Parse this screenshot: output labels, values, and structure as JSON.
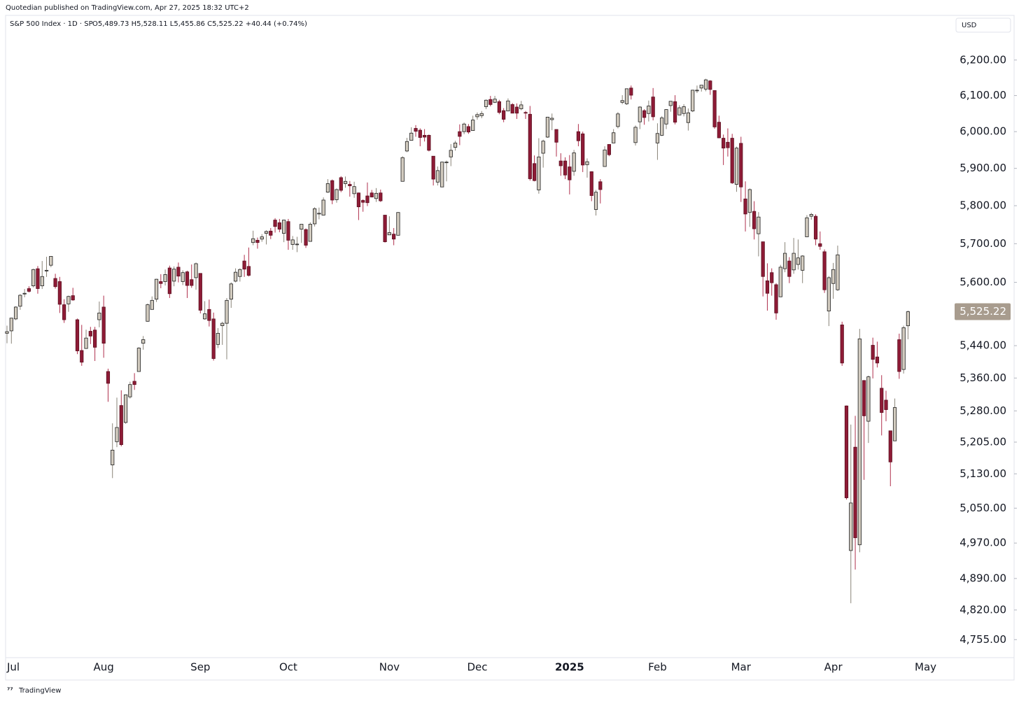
{
  "chart_data": {
    "type": "candlestick",
    "publisher": "Quotedian published on TradingView.com, Apr 27, 2025 18:32 UTC+2",
    "title": "S&P 500 Index · 1D · SP",
    "subtitle": "O5,489.73  H5,528.11  L5,455.86  C5,525.22  +40.44 (+0.74%)",
    "currency": "USD",
    "branding": "TradingView",
    "log_scale": true,
    "up_color": "#d3ccc0",
    "down_color": "#8e1b36",
    "ylim": [
      4716,
      6328
    ],
    "yticks": [
      {
        "value": 6200,
        "label": "6,200.00"
      },
      {
        "value": 6100,
        "label": "6,100.00"
      },
      {
        "value": 6000,
        "label": "6,000.00"
      },
      {
        "value": 5900,
        "label": "5,900.00"
      },
      {
        "value": 5800,
        "label": "5,800.00"
      },
      {
        "value": 5700,
        "label": "5,700.00"
      },
      {
        "value": 5600,
        "label": "5,600.00"
      },
      {
        "value": 5440,
        "label": "5,440.00"
      },
      {
        "value": 5360,
        "label": "5,360.00"
      },
      {
        "value": 5280,
        "label": "5,280.00"
      },
      {
        "value": 5205,
        "label": "5,205.00"
      },
      {
        "value": 5130,
        "label": "5,130.00"
      },
      {
        "value": 5050,
        "label": "5,050.00"
      },
      {
        "value": 4970,
        "label": "4,970.00"
      },
      {
        "value": 4890,
        "label": "4,890.00"
      },
      {
        "value": 4820,
        "label": "4,820.00"
      },
      {
        "value": 4755,
        "label": "4,755.00"
      }
    ],
    "last_price": {
      "value": 5525.22,
      "label": "5,525.22"
    },
    "categories": [
      "Jul",
      null,
      null,
      null,
      null,
      null,
      null,
      null,
      null,
      null,
      null,
      null,
      null,
      null,
      null,
      null,
      null,
      null,
      null,
      null,
      null,
      null,
      "Aug",
      null,
      null,
      null,
      null,
      null,
      null,
      null,
      null,
      null,
      null,
      null,
      null,
      null,
      null,
      null,
      null,
      null,
      null,
      null,
      null,
      null,
      "Sep",
      null,
      null,
      null,
      null,
      null,
      null,
      null,
      null,
      null,
      null,
      null,
      null,
      null,
      null,
      null,
      null,
      null,
      null,
      null,
      "Oct",
      null,
      null,
      null,
      null,
      null,
      null,
      null,
      null,
      null,
      null,
      null,
      null,
      null,
      null,
      null,
      null,
      null,
      null,
      null,
      null,
      null,
      null,
      "Nov",
      null,
      null,
      null,
      null,
      null,
      null,
      null,
      null,
      null,
      null,
      null,
      null,
      null,
      null,
      null,
      null,
      null,
      null,
      null,
      "Dec",
      null,
      null,
      null,
      null,
      null,
      null,
      null,
      null,
      null,
      null,
      null,
      null,
      null,
      null,
      null,
      null,
      null,
      null,
      null,
      null,
      "2025",
      null,
      null,
      null,
      null,
      null,
      null,
      null,
      null,
      null,
      null,
      null,
      null,
      null,
      null,
      null,
      null,
      null,
      null,
      null,
      "Feb",
      null,
      null,
      null,
      null,
      null,
      null,
      null,
      null,
      null,
      null,
      null,
      null,
      null,
      null,
      null,
      null,
      null,
      null,
      "Mar",
      null,
      null,
      null,
      null,
      null,
      null,
      null,
      null,
      null,
      null,
      null,
      null,
      null,
      null,
      null,
      null,
      null,
      null,
      null,
      null,
      "Apr",
      null,
      null,
      null,
      null,
      null,
      null,
      null,
      null,
      null,
      null,
      null,
      null,
      null,
      null,
      null,
      null,
      null,
      null,
      null,
      null,
      "May"
    ],
    "ohlc": [
      [
        5471,
        5490,
        5446,
        5475
      ],
      [
        5477,
        5510,
        5445,
        5509
      ],
      [
        5507,
        5539,
        5504,
        5537
      ],
      [
        5539,
        5570,
        5530,
        5567
      ],
      [
        5572,
        5583,
        5562,
        5572
      ],
      [
        5584,
        5590,
        5574,
        5577
      ],
      [
        5591,
        5635,
        5587,
        5633
      ],
      [
        5635,
        5642,
        5571,
        5584
      ],
      [
        5591,
        5655,
        5583,
        5615
      ],
      [
        5630,
        5666,
        5614,
        5631
      ],
      [
        5644,
        5667,
        5639,
        5667
      ],
      [
        5610,
        5622,
        5584,
        5589
      ],
      [
        5602,
        5614,
        5522,
        5544
      ],
      [
        5543,
        5557,
        5497,
        5505
      ],
      [
        5545,
        5566,
        5525,
        5564
      ],
      [
        5566,
        5586,
        5553,
        5555
      ],
      [
        5505,
        5508,
        5419,
        5427
      ],
      [
        5428,
        5492,
        5390,
        5399
      ],
      [
        5433,
        5480,
        5432,
        5459
      ],
      [
        5476,
        5487,
        5444,
        5464
      ],
      [
        5479,
        5487,
        5402,
        5436
      ],
      [
        5505,
        5551,
        5486,
        5522
      ],
      [
        5537,
        5566,
        5410,
        5446
      ],
      [
        5376,
        5383,
        5302,
        5347
      ],
      [
        5151,
        5250,
        5120,
        5186
      ],
      [
        5206,
        5312,
        5193,
        5240
      ],
      [
        5293,
        5330,
        5195,
        5199
      ],
      [
        5252,
        5320,
        5249,
        5319
      ],
      [
        5314,
        5351,
        5310,
        5344
      ],
      [
        5352,
        5372,
        5331,
        5344
      ],
      [
        5376,
        5436,
        5376,
        5434
      ],
      [
        5446,
        5464,
        5430,
        5455
      ],
      [
        5501,
        5546,
        5500,
        5543
      ],
      [
        5531,
        5564,
        5531,
        5554
      ],
      [
        5557,
        5609,
        5550,
        5608
      ],
      [
        5602,
        5621,
        5585,
        5597
      ],
      [
        5602,
        5633,
        5592,
        5620
      ],
      [
        5637,
        5643,
        5560,
        5571
      ],
      [
        5603,
        5641,
        5590,
        5634
      ],
      [
        5639,
        5651,
        5600,
        5616
      ],
      [
        5602,
        5631,
        5593,
        5625
      ],
      [
        5627,
        5630,
        5560,
        5592
      ],
      [
        5607,
        5646,
        5586,
        5592
      ],
      [
        5612,
        5651,
        5581,
        5648
      ],
      [
        5623,
        5623,
        5521,
        5529
      ],
      [
        5507,
        5552,
        5505,
        5520
      ],
      [
        5531,
        5556,
        5488,
        5503
      ],
      [
        5507,
        5523,
        5403,
        5408
      ],
      [
        5443,
        5484,
        5434,
        5471
      ],
      [
        5490,
        5500,
        5442,
        5496
      ],
      [
        5496,
        5560,
        5406,
        5554
      ],
      [
        5557,
        5600,
        5535,
        5596
      ],
      [
        5603,
        5636,
        5600,
        5626
      ],
      [
        5615,
        5636,
        5602,
        5633
      ],
      [
        5655,
        5671,
        5614,
        5634
      ],
      [
        5641,
        5690,
        5615,
        5618
      ],
      [
        5703,
        5734,
        5696,
        5713
      ],
      [
        5709,
        5716,
        5687,
        5703
      ],
      [
        5712,
        5725,
        5705,
        5718
      ],
      [
        5727,
        5735,
        5698,
        5732
      ],
      [
        5733,
        5741,
        5712,
        5722
      ],
      [
        5762,
        5767,
        5729,
        5745
      ],
      [
        5755,
        5765,
        5730,
        5738
      ],
      [
        5727,
        5763,
        5704,
        5762
      ],
      [
        5758,
        5765,
        5684,
        5709
      ],
      [
        5698,
        5720,
        5684,
        5710
      ],
      [
        5698,
        5718,
        5678,
        5699
      ],
      [
        5738,
        5751,
        5702,
        5751
      ],
      [
        5737,
        5740,
        5689,
        5696
      ],
      [
        5706,
        5756,
        5706,
        5751
      ],
      [
        5752,
        5796,
        5745,
        5792
      ],
      [
        5778,
        5795,
        5764,
        5780
      ],
      [
        5775,
        5822,
        5775,
        5815
      ],
      [
        5836,
        5871,
        5834,
        5859
      ],
      [
        5867,
        5870,
        5804,
        5815
      ],
      [
        5816,
        5846,
        5808,
        5843
      ],
      [
        5875,
        5879,
        5836,
        5841
      ],
      [
        5859,
        5878,
        5848,
        5865
      ],
      [
        5857,
        5866,
        5824,
        5853
      ],
      [
        5832,
        5864,
        5821,
        5851
      ],
      [
        5834,
        5835,
        5762,
        5797
      ],
      [
        5814,
        5817,
        5784,
        5809
      ],
      [
        5826,
        5862,
        5799,
        5808
      ],
      [
        5834,
        5842,
        5823,
        5823
      ],
      [
        5819,
        5847,
        5810,
        5833
      ],
      [
        5834,
        5843,
        5810,
        5813
      ],
      [
        5775,
        5775,
        5703,
        5705
      ],
      [
        5723,
        5772,
        5723,
        5729
      ],
      [
        5725,
        5741,
        5696,
        5712
      ],
      [
        5722,
        5783,
        5722,
        5782
      ],
      [
        5865,
        5933,
        5865,
        5929
      ],
      [
        5947,
        5983,
        5944,
        5973
      ],
      [
        5976,
        6012,
        5976,
        5996
      ],
      [
        6009,
        6018,
        5986,
        6001
      ],
      [
        6004,
        6009,
        5960,
        5984
      ],
      [
        5990,
        6007,
        5973,
        5985
      ],
      [
        5990,
        5992,
        5946,
        5949
      ],
      [
        5933,
        5933,
        5854,
        5871
      ],
      [
        5863,
        5905,
        5854,
        5894
      ],
      [
        5850,
        5918,
        5850,
        5917
      ],
      [
        5916,
        5921,
        5865,
        5917
      ],
      [
        5931,
        5966,
        5906,
        5949
      ],
      [
        5957,
        5975,
        5948,
        5969
      ],
      [
        6000,
        6020,
        5963,
        5987
      ],
      [
        6000,
        6025,
        5993,
        6021
      ],
      [
        6014,
        6021,
        5994,
        5999
      ],
      [
        6003,
        6044,
        6003,
        6032
      ],
      [
        6041,
        6053,
        6033,
        6047
      ],
      [
        6044,
        6057,
        6037,
        6050
      ],
      [
        6069,
        6089,
        6062,
        6087
      ],
      [
        6089,
        6099,
        6070,
        6075
      ],
      [
        6081,
        6099,
        6079,
        6090
      ],
      [
        6083,
        6088,
        6048,
        6053
      ],
      [
        6058,
        6065,
        6026,
        6034
      ],
      [
        6057,
        6092,
        6057,
        6085
      ],
      [
        6075,
        6079,
        6051,
        6051
      ],
      [
        6068,
        6078,
        6035,
        6051
      ],
      [
        6063,
        6085,
        6059,
        6074
      ],
      [
        6053,
        6057,
        6035,
        6051
      ],
      [
        6048,
        6071,
        5867,
        5872
      ],
      [
        5913,
        5935,
        5865,
        5867
      ],
      [
        5842,
        5982,
        5832,
        5931
      ],
      [
        5941,
        5978,
        5902,
        5974
      ],
      [
        5985,
        6040,
        5983,
        6040
      ],
      [
        6033,
        6050,
        6004,
        6037
      ],
      [
        6006,
        6006,
        5932,
        5971
      ],
      [
        5920,
        5941,
        5880,
        5907
      ],
      [
        5920,
        5930,
        5871,
        5882
      ],
      [
        5904,
        5936,
        5830,
        5869
      ],
      [
        5892,
        5950,
        5880,
        5942
      ],
      [
        6000,
        6021,
        5960,
        5975
      ],
      [
        5994,
        6000,
        5890,
        5909
      ],
      [
        5910,
        5927,
        5875,
        5918
      ],
      [
        5891,
        5892,
        5812,
        5827
      ],
      [
        5790,
        5842,
        5774,
        5836
      ],
      [
        5864,
        5871,
        5806,
        5843
      ],
      [
        5905,
        5960,
        5905,
        5950
      ],
      [
        5965,
        5965,
        5933,
        5937
      ],
      [
        5969,
        6007,
        5969,
        5997
      ],
      [
        6014,
        6054,
        6009,
        6049
      ],
      [
        6081,
        6101,
        6076,
        6086
      ],
      [
        6077,
        6119,
        6074,
        6119
      ],
      [
        6121,
        6128,
        6089,
        6101
      ],
      [
        5970,
        6017,
        5962,
        6012
      ],
      [
        6027,
        6070,
        6007,
        6068
      ],
      [
        6058,
        6062,
        6019,
        6039
      ],
      [
        6050,
        6086,
        6028,
        6071
      ],
      [
        6096,
        6121,
        6031,
        6041
      ],
      [
        5969,
        6023,
        5923,
        5995
      ],
      [
        5990,
        6043,
        5988,
        6038
      ],
      [
        6021,
        6062,
        6007,
        6061
      ],
      [
        6072,
        6084,
        6055,
        6084
      ],
      [
        6083,
        6101,
        6020,
        6026
      ],
      [
        6046,
        6073,
        6046,
        6066
      ],
      [
        6050,
        6076,
        6042,
        6069
      ],
      [
        6025,
        6064,
        6003,
        6052
      ],
      [
        6057,
        6116,
        6054,
        6115
      ],
      [
        6115,
        6128,
        6107,
        6115
      ],
      [
        6121,
        6129,
        6111,
        6129
      ],
      [
        6118,
        6147,
        6112,
        6144
      ],
      [
        6141,
        6143,
        6102,
        6117
      ],
      [
        6114,
        6114,
        6008,
        6013
      ],
      [
        6026,
        6044,
        5982,
        5983
      ],
      [
        5982,
        5992,
        5909,
        5955
      ],
      [
        5971,
        6009,
        5932,
        5956
      ],
      [
        5982,
        5994,
        5858,
        5861
      ],
      [
        5857,
        5959,
        5837,
        5955
      ],
      [
        5968,
        5986,
        5810,
        5850
      ],
      [
        5818,
        5865,
        5732,
        5778
      ],
      [
        5782,
        5846,
        5744,
        5843
      ],
      [
        5785,
        5812,
        5711,
        5739
      ],
      [
        5726,
        5783,
        5667,
        5770
      ],
      [
        5705,
        5705,
        5564,
        5615
      ],
      [
        5604,
        5649,
        5528,
        5572
      ],
      [
        5625,
        5636,
        5566,
        5599
      ],
      [
        5594,
        5598,
        5505,
        5522
      ],
      [
        5563,
        5645,
        5563,
        5639
      ],
      [
        5635,
        5704,
        5626,
        5675
      ],
      [
        5655,
        5665,
        5598,
        5615
      ],
      [
        5632,
        5715,
        5622,
        5675
      ],
      [
        5646,
        5711,
        5633,
        5663
      ],
      [
        5631,
        5670,
        5598,
        5668
      ],
      [
        5718,
        5775,
        5718,
        5768
      ],
      [
        5772,
        5781,
        5763,
        5777
      ],
      [
        5772,
        5777,
        5696,
        5712
      ],
      [
        5700,
        5732,
        5684,
        5693
      ],
      [
        5679,
        5685,
        5573,
        5581
      ],
      [
        5527,
        5616,
        5489,
        5612
      ],
      [
        5597,
        5650,
        5558,
        5633
      ],
      [
        5581,
        5695,
        5578,
        5671
      ],
      [
        5492,
        5500,
        5390,
        5397
      ],
      [
        5292,
        5293,
        5070,
        5074
      ],
      [
        4953,
        5247,
        4835,
        5062
      ],
      [
        5193,
        5268,
        4910,
        4982
      ],
      [
        4966,
        5482,
        4949,
        5457
      ],
      [
        5354,
        5354,
        5116,
        5268
      ],
      [
        5255,
        5366,
        5203,
        5363
      ],
      [
        5441,
        5460,
        5359,
        5406
      ],
      [
        5412,
        5450,
        5386,
        5397
      ],
      [
        5335,
        5367,
        5221,
        5276
      ],
      [
        5306,
        5329,
        5255,
        5283
      ],
      [
        5232,
        5232,
        5101,
        5158
      ],
      [
        5208,
        5310,
        5208,
        5288
      ],
      [
        5455,
        5470,
        5358,
        5376
      ],
      [
        5381,
        5490,
        5371,
        5485
      ],
      [
        5489.73,
        5528.11,
        5455.86,
        5525.22
      ],
      null,
      null,
      null,
      null
    ]
  }
}
